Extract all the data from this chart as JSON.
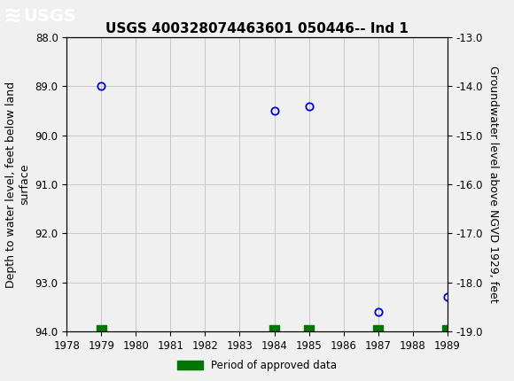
{
  "title": "USGS 400328074463601 050446-- Ind 1",
  "ylabel_left": "Depth to water level, feet below land\nsurface",
  "ylabel_right": "Groundwater level above NGVD 1929, feet",
  "xlim": [
    1978,
    1989
  ],
  "ylim_left": [
    88.0,
    94.0
  ],
  "ylim_right": [
    -13.0,
    -19.0
  ],
  "xticks": [
    1978,
    1979,
    1980,
    1981,
    1982,
    1983,
    1984,
    1985,
    1986,
    1987,
    1988,
    1989
  ],
  "yticks_left": [
    88.0,
    89.0,
    90.0,
    91.0,
    92.0,
    93.0,
    94.0
  ],
  "yticks_right": [
    -13.0,
    -14.0,
    -15.0,
    -16.0,
    -17.0,
    -18.0,
    -19.0
  ],
  "data_x": [
    1979,
    1984,
    1985,
    1987,
    1989
  ],
  "data_y": [
    89.0,
    89.5,
    89.4,
    93.6,
    93.3
  ],
  "approved_bars_x": [
    1979,
    1984,
    1985,
    1987,
    1989
  ],
  "approved_bar_y": 94.0,
  "approved_bar_height": 0.13,
  "approved_bar_width": 0.28,
  "point_color": "#0000cc",
  "point_markersize": 6,
  "approved_color": "#007700",
  "background_color": "#f0f0f0",
  "plot_bg_color": "#f0f0f0",
  "header_color": "#1a6e38",
  "grid_color": "#c8c8c8",
  "title_fontsize": 11,
  "axis_label_fontsize": 9,
  "tick_fontsize": 8.5
}
